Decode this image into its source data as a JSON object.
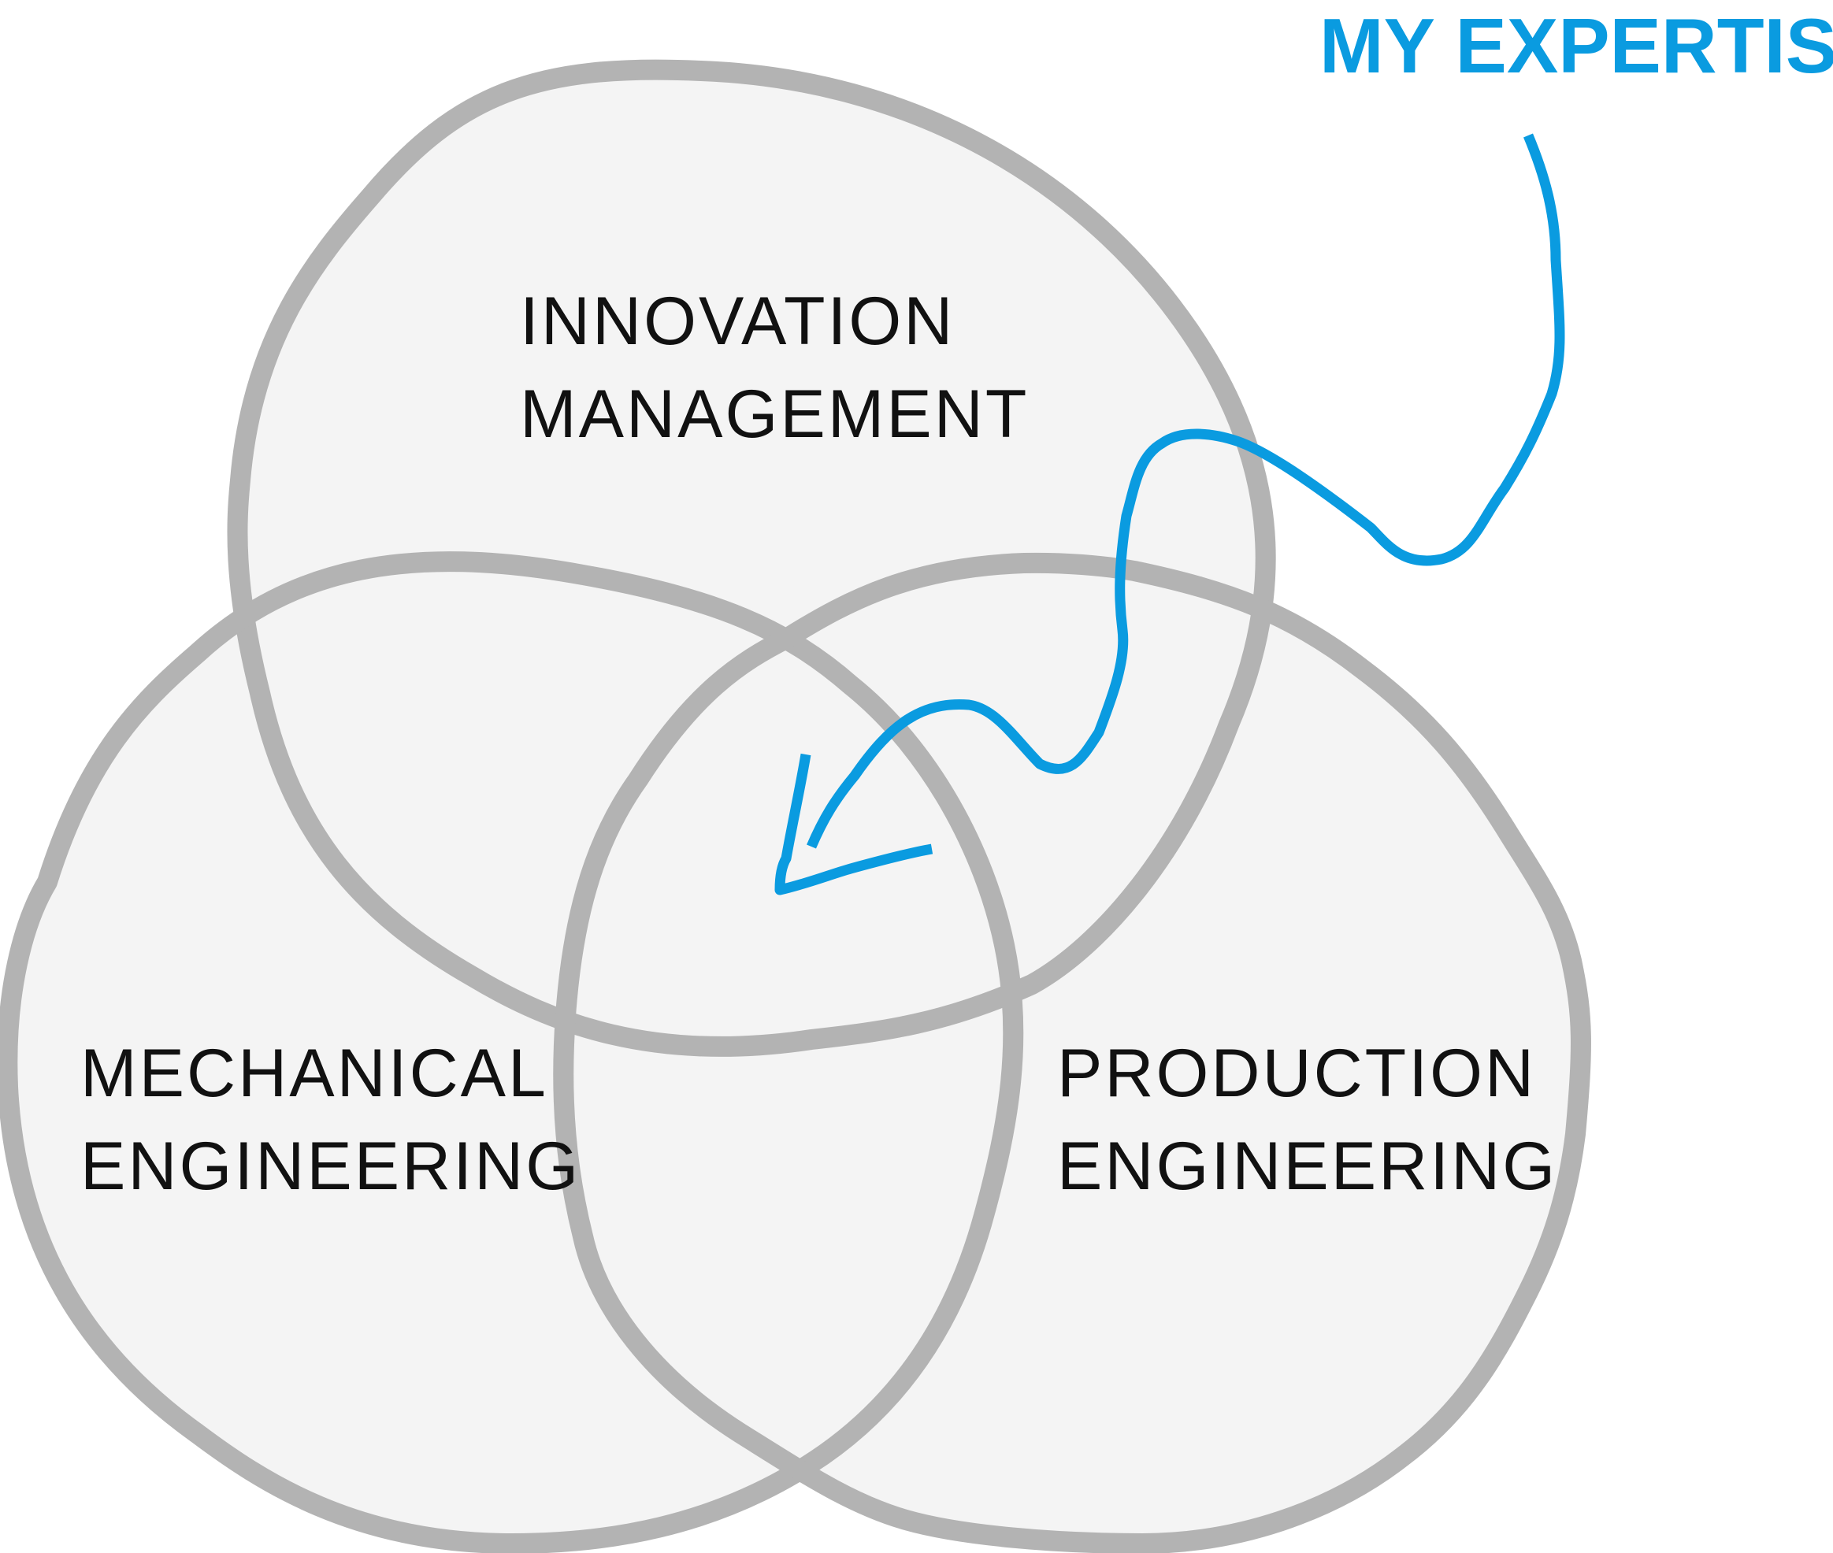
{
  "diagram": {
    "sets": [
      {
        "id": "innovation",
        "lines": [
          "INNOVATION",
          "MANAGEMENT"
        ]
      },
      {
        "id": "mechanical",
        "lines": [
          "MECHANICAL",
          "ENGINEERING"
        ]
      },
      {
        "id": "production",
        "lines": [
          "PRODUCTION",
          "ENGINEERING"
        ]
      }
    ],
    "callout": {
      "text": "MY EXPERTISE"
    },
    "colors": {
      "outline": "#b3b3b3",
      "fill": "#f4f4f4",
      "text": "#111111",
      "accent": "#0a9be0"
    }
  }
}
